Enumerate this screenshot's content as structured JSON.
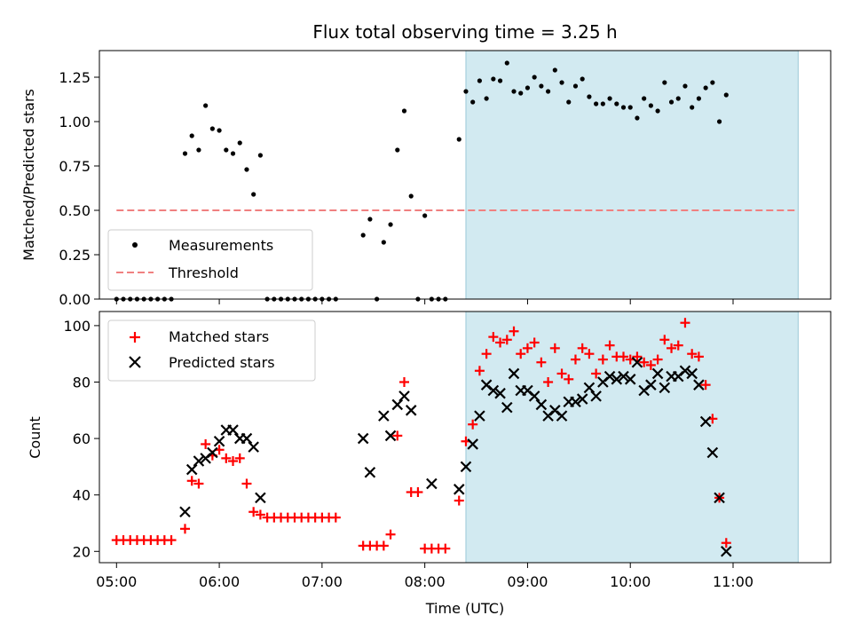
{
  "chart_data": {
    "type": "scatter",
    "title": "Flux total observing time = 3.25 h",
    "xlabel": "Time (UTC)",
    "x_ticks": [
      "05:00",
      "06:00",
      "07:00",
      "08:00",
      "09:00",
      "10:00",
      "11:00"
    ],
    "x_range": [
      "04:50",
      "11:57"
    ],
    "shaded_region": {
      "x_start": "08:24",
      "x_end": "11:38",
      "color": "#add8e6"
    },
    "top_panel": {
      "ylabel": "Matched/Predicted stars",
      "ylim": [
        0,
        1.4
      ],
      "y_ticks": [
        "0.00",
        "0.25",
        "0.50",
        "0.75",
        "1.00",
        "1.25"
      ],
      "legend_position": "lower-left",
      "threshold": {
        "name": "Threshold",
        "value": 0.5,
        "x_start": "05:00",
        "x_end": "11:38",
        "color": "#f08080"
      },
      "series": [
        {
          "name": "Measurements",
          "color": "#000000",
          "marker": "dot",
          "points": [
            [
              "05:00",
              0
            ],
            [
              "05:04",
              0
            ],
            [
              "05:08",
              0
            ],
            [
              "05:12",
              0
            ],
            [
              "05:16",
              0
            ],
            [
              "05:20",
              0
            ],
            [
              "05:24",
              0
            ],
            [
              "05:28",
              0
            ],
            [
              "05:32",
              0
            ],
            [
              "05:40",
              0.82
            ],
            [
              "05:44",
              0.92
            ],
            [
              "05:48",
              0.84
            ],
            [
              "05:52",
              1.09
            ],
            [
              "05:56",
              0.96
            ],
            [
              "06:00",
              0.95
            ],
            [
              "06:04",
              0.84
            ],
            [
              "06:08",
              0.82
            ],
            [
              "06:12",
              0.88
            ],
            [
              "06:16",
              0.73
            ],
            [
              "06:20",
              0.59
            ],
            [
              "06:24",
              0.81
            ],
            [
              "06:28",
              0
            ],
            [
              "06:32",
              0
            ],
            [
              "06:36",
              0
            ],
            [
              "06:40",
              0
            ],
            [
              "06:44",
              0
            ],
            [
              "06:48",
              0
            ],
            [
              "06:52",
              0
            ],
            [
              "06:56",
              0
            ],
            [
              "07:00",
              0
            ],
            [
              "07:04",
              0
            ],
            [
              "07:08",
              0
            ],
            [
              "07:24",
              0.36
            ],
            [
              "07:28",
              0.45
            ],
            [
              "07:32",
              0
            ],
            [
              "07:36",
              0.32
            ],
            [
              "07:40",
              0.42
            ],
            [
              "07:44",
              0.84
            ],
            [
              "07:48",
              1.06
            ],
            [
              "07:52",
              0.58
            ],
            [
              "07:56",
              0
            ],
            [
              "08:00",
              0.47
            ],
            [
              "08:04",
              0
            ],
            [
              "08:08",
              0
            ],
            [
              "08:12",
              0
            ],
            [
              "08:20",
              0.9
            ],
            [
              "08:24",
              1.17
            ],
            [
              "08:28",
              1.11
            ],
            [
              "08:32",
              1.23
            ],
            [
              "08:36",
              1.13
            ],
            [
              "08:40",
              1.24
            ],
            [
              "08:44",
              1.23
            ],
            [
              "08:48",
              1.33
            ],
            [
              "08:52",
              1.17
            ],
            [
              "08:56",
              1.16
            ],
            [
              "09:00",
              1.19
            ],
            [
              "09:04",
              1.25
            ],
            [
              "09:08",
              1.2
            ],
            [
              "09:12",
              1.17
            ],
            [
              "09:16",
              1.29
            ],
            [
              "09:20",
              1.22
            ],
            [
              "09:24",
              1.11
            ],
            [
              "09:28",
              1.2
            ],
            [
              "09:32",
              1.24
            ],
            [
              "09:36",
              1.14
            ],
            [
              "09:40",
              1.1
            ],
            [
              "09:44",
              1.1
            ],
            [
              "09:48",
              1.13
            ],
            [
              "09:52",
              1.1
            ],
            [
              "09:56",
              1.08
            ],
            [
              "10:00",
              1.08
            ],
            [
              "10:04",
              1.02
            ],
            [
              "10:08",
              1.13
            ],
            [
              "10:12",
              1.09
            ],
            [
              "10:16",
              1.06
            ],
            [
              "10:20",
              1.22
            ],
            [
              "10:24",
              1.11
            ],
            [
              "10:28",
              1.13
            ],
            [
              "10:32",
              1.2
            ],
            [
              "10:36",
              1.08
            ],
            [
              "10:40",
              1.13
            ],
            [
              "10:44",
              1.19
            ],
            [
              "10:48",
              1.22
            ],
            [
              "10:52",
              1.0
            ],
            [
              "10:56",
              1.15
            ]
          ]
        }
      ]
    },
    "bottom_panel": {
      "ylabel": "Count",
      "ylim": [
        16,
        105
      ],
      "y_ticks": [
        "20",
        "40",
        "60",
        "80",
        "100"
      ],
      "legend_position": "top-left",
      "series": [
        {
          "name": "Matched stars",
          "color": "#ff0000",
          "marker": "plus",
          "points": [
            [
              "05:00",
              24
            ],
            [
              "05:04",
              24
            ],
            [
              "05:08",
              24
            ],
            [
              "05:12",
              24
            ],
            [
              "05:16",
              24
            ],
            [
              "05:20",
              24
            ],
            [
              "05:24",
              24
            ],
            [
              "05:28",
              24
            ],
            [
              "05:32",
              24
            ],
            [
              "05:40",
              28
            ],
            [
              "05:44",
              45
            ],
            [
              "05:48",
              44
            ],
            [
              "05:52",
              58
            ],
            [
              "05:56",
              54
            ],
            [
              "06:00",
              56
            ],
            [
              "06:04",
              53
            ],
            [
              "06:08",
              52
            ],
            [
              "06:12",
              53
            ],
            [
              "06:16",
              44
            ],
            [
              "06:20",
              34
            ],
            [
              "06:24",
              33
            ],
            [
              "06:28",
              32
            ],
            [
              "06:32",
              32
            ],
            [
              "06:36",
              32
            ],
            [
              "06:40",
              32
            ],
            [
              "06:44",
              32
            ],
            [
              "06:48",
              32
            ],
            [
              "06:52",
              32
            ],
            [
              "06:56",
              32
            ],
            [
              "07:00",
              32
            ],
            [
              "07:04",
              32
            ],
            [
              "07:08",
              32
            ],
            [
              "07:24",
              22
            ],
            [
              "07:28",
              22
            ],
            [
              "07:32",
              22
            ],
            [
              "07:36",
              22
            ],
            [
              "07:40",
              26
            ],
            [
              "07:44",
              61
            ],
            [
              "07:48",
              80
            ],
            [
              "07:52",
              41
            ],
            [
              "07:56",
              41
            ],
            [
              "08:00",
              21
            ],
            [
              "08:04",
              21
            ],
            [
              "08:08",
              21
            ],
            [
              "08:12",
              21
            ],
            [
              "08:20",
              38
            ],
            [
              "08:24",
              59
            ],
            [
              "08:28",
              65
            ],
            [
              "08:32",
              84
            ],
            [
              "08:36",
              90
            ],
            [
              "08:40",
              96
            ],
            [
              "08:44",
              94
            ],
            [
              "08:48",
              95
            ],
            [
              "08:52",
              98
            ],
            [
              "08:56",
              90
            ],
            [
              "09:00",
              92
            ],
            [
              "09:04",
              94
            ],
            [
              "09:08",
              87
            ],
            [
              "09:12",
              80
            ],
            [
              "09:16",
              92
            ],
            [
              "09:20",
              83
            ],
            [
              "09:24",
              81
            ],
            [
              "09:28",
              88
            ],
            [
              "09:32",
              92
            ],
            [
              "09:36",
              90
            ],
            [
              "09:40",
              83
            ],
            [
              "09:44",
              88
            ],
            [
              "09:48",
              93
            ],
            [
              "09:52",
              89
            ],
            [
              "09:56",
              89
            ],
            [
              "10:00",
              88
            ],
            [
              "10:04",
              89
            ],
            [
              "10:08",
              87
            ],
            [
              "10:12",
              86
            ],
            [
              "10:16",
              88
            ],
            [
              "10:20",
              95
            ],
            [
              "10:24",
              92
            ],
            [
              "10:28",
              93
            ],
            [
              "10:32",
              101
            ],
            [
              "10:36",
              90
            ],
            [
              "10:40",
              89
            ],
            [
              "10:44",
              79
            ],
            [
              "10:48",
              67
            ],
            [
              "10:52",
              39
            ],
            [
              "10:56",
              23
            ]
          ]
        },
        {
          "name": "Predicted stars",
          "color": "#000000",
          "marker": "x",
          "points": [
            [
              "05:40",
              34
            ],
            [
              "05:44",
              49
            ],
            [
              "05:48",
              52
            ],
            [
              "05:52",
              53
            ],
            [
              "05:56",
              55
            ],
            [
              "06:00",
              59
            ],
            [
              "06:04",
              63
            ],
            [
              "06:08",
              63
            ],
            [
              "06:12",
              60
            ],
            [
              "06:16",
              60
            ],
            [
              "06:20",
              57
            ],
            [
              "06:24",
              39
            ],
            [
              "07:24",
              60
            ],
            [
              "07:28",
              48
            ],
            [
              "07:36",
              68
            ],
            [
              "07:40",
              61
            ],
            [
              "07:44",
              72
            ],
            [
              "07:48",
              75
            ],
            [
              "07:52",
              70
            ],
            [
              "08:04",
              44
            ],
            [
              "08:20",
              42
            ],
            [
              "08:24",
              50
            ],
            [
              "08:28",
              58
            ],
            [
              "08:32",
              68
            ],
            [
              "08:36",
              79
            ],
            [
              "08:40",
              77
            ],
            [
              "08:44",
              76
            ],
            [
              "08:48",
              71
            ],
            [
              "08:52",
              83
            ],
            [
              "08:56",
              77
            ],
            [
              "09:00",
              77
            ],
            [
              "09:04",
              75
            ],
            [
              "09:08",
              72
            ],
            [
              "09:12",
              68
            ],
            [
              "09:16",
              70
            ],
            [
              "09:20",
              68
            ],
            [
              "09:24",
              73
            ],
            [
              "09:28",
              73
            ],
            [
              "09:32",
              74
            ],
            [
              "09:36",
              78
            ],
            [
              "09:40",
              75
            ],
            [
              "09:44",
              80
            ],
            [
              "09:48",
              82
            ],
            [
              "09:52",
              81
            ],
            [
              "09:56",
              82
            ],
            [
              "10:00",
              81
            ],
            [
              "10:04",
              87
            ],
            [
              "10:08",
              77
            ],
            [
              "10:12",
              79
            ],
            [
              "10:16",
              83
            ],
            [
              "10:20",
              78
            ],
            [
              "10:24",
              82
            ],
            [
              "10:28",
              82
            ],
            [
              "10:32",
              84
            ],
            [
              "10:36",
              83
            ],
            [
              "10:40",
              79
            ],
            [
              "10:44",
              66
            ],
            [
              "10:48",
              55
            ],
            [
              "10:52",
              39
            ],
            [
              "10:56",
              20
            ]
          ]
        }
      ]
    }
  }
}
